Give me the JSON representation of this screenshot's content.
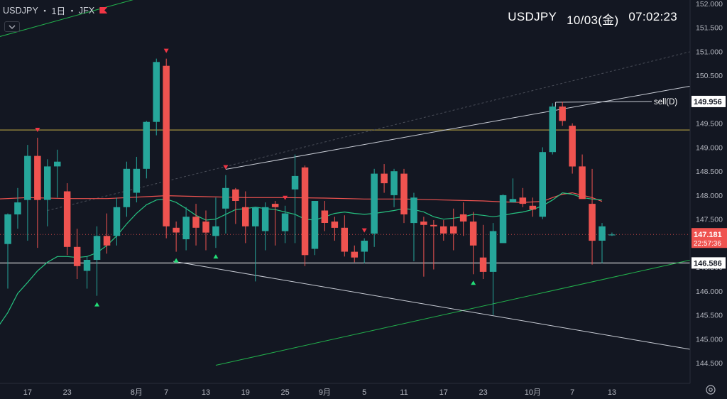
{
  "symbol": {
    "name": "USDJPY",
    "sep1": "・",
    "timeframe": "1日",
    "sep2": "・",
    "exchange": "JFX"
  },
  "header": {
    "symbol": "USDJPY",
    "date": "10/03(金)",
    "time": "07:02:23"
  },
  "colors": {
    "background": "#131722",
    "up": "#26a69a",
    "down": "#ef5350",
    "ma_short": "#26c281",
    "ma_long": "#ef5350",
    "trendline": "#c9cdd6",
    "channel": "#22b14c",
    "resistance": "#8a7d3a",
    "support": "#ffffff"
  },
  "chart_data": {
    "type": "candlestick",
    "ylim": [
      144.25,
      152.0
    ],
    "y_ticks": [
      "152.000",
      "151.500",
      "151.000",
      "150.500",
      "150.000",
      "149.500",
      "149.000",
      "148.500",
      "148.000",
      "147.500",
      "147.000",
      "146.500",
      "146.000",
      "145.500",
      "145.000",
      "144.500"
    ],
    "x_labels": [
      {
        "label": "17",
        "i": 2
      },
      {
        "label": "23",
        "i": 6
      },
      {
        "label": "8月",
        "i": 13
      },
      {
        "label": "7",
        "i": 16
      },
      {
        "label": "13",
        "i": 20
      },
      {
        "label": "19",
        "i": 24
      },
      {
        "label": "25",
        "i": 28
      },
      {
        "label": "9月",
        "i": 32
      },
      {
        "label": "5",
        "i": 36
      },
      {
        "label": "11",
        "i": 40
      },
      {
        "label": "17",
        "i": 44
      },
      {
        "label": "23",
        "i": 48
      },
      {
        "label": "10月",
        "i": 53
      },
      {
        "label": "7",
        "i": 57
      },
      {
        "label": "13",
        "i": 61
      }
    ],
    "candles": [
      [
        146.98,
        147.62,
        146.05,
        147.6
      ],
      [
        147.6,
        148.15,
        147.3,
        147.85
      ],
      [
        147.9,
        149.05,
        147.05,
        148.82
      ],
      [
        148.82,
        149.2,
        146.9,
        147.9
      ],
      [
        147.9,
        148.75,
        147.35,
        148.6
      ],
      [
        148.6,
        148.95,
        147.95,
        148.7
      ],
      [
        148.08,
        148.25,
        146.75,
        146.92
      ],
      [
        146.92,
        147.3,
        146.25,
        146.52
      ],
      [
        146.42,
        146.72,
        146.05,
        146.65
      ],
      [
        146.65,
        147.35,
        145.9,
        147.15
      ],
      [
        147.15,
        147.62,
        146.78,
        146.95
      ],
      [
        147.15,
        147.95,
        146.95,
        147.75
      ],
      [
        147.75,
        148.7,
        147.55,
        148.55
      ],
      [
        148.05,
        148.8,
        147.85,
        148.55
      ],
      [
        148.55,
        149.55,
        148.35,
        149.53
      ],
      [
        149.53,
        150.85,
        149.25,
        150.78
      ],
      [
        150.7,
        150.85,
        147.1,
        147.35
      ],
      [
        147.32,
        147.45,
        146.82,
        147.22
      ],
      [
        147.08,
        147.75,
        146.85,
        147.55
      ],
      [
        147.55,
        147.82,
        146.95,
        147.32
      ],
      [
        147.45,
        147.68,
        146.85,
        147.22
      ],
      [
        147.15,
        147.95,
        146.9,
        147.35
      ],
      [
        147.72,
        148.42,
        147.2,
        148.15
      ],
      [
        148.12,
        148.15,
        147.4,
        147.88
      ],
      [
        147.75,
        148.08,
        147.0,
        147.35
      ],
      [
        147.35,
        147.68,
        146.2,
        147.75
      ],
      [
        147.25,
        147.85,
        146.85,
        147.75
      ],
      [
        147.82,
        147.88,
        146.95,
        147.75
      ],
      [
        147.25,
        147.78,
        147.0,
        147.62
      ],
      [
        148.12,
        148.85,
        147.0,
        148.4
      ],
      [
        148.58,
        148.62,
        146.52,
        146.75
      ],
      [
        146.88,
        147.85,
        146.75,
        147.88
      ],
      [
        147.68,
        147.88,
        147.25,
        147.42
      ],
      [
        147.45,
        147.55,
        147.05,
        147.32
      ],
      [
        147.32,
        147.58,
        146.72,
        146.82
      ],
      [
        146.82,
        146.95,
        146.6,
        146.7
      ],
      [
        146.82,
        147.1,
        146.58,
        147.05
      ],
      [
        147.2,
        148.55,
        146.92,
        148.45
      ],
      [
        148.45,
        148.65,
        148.05,
        148.25
      ],
      [
        148.0,
        148.55,
        147.75,
        148.5
      ],
      [
        148.45,
        148.55,
        147.42,
        147.6
      ],
      [
        147.42,
        148.05,
        146.62,
        147.95
      ],
      [
        147.45,
        147.55,
        146.3,
        147.38
      ],
      [
        147.38,
        147.48,
        146.45,
        147.35
      ],
      [
        147.35,
        147.48,
        147.05,
        147.2
      ],
      [
        147.35,
        147.72,
        146.85,
        147.2
      ],
      [
        147.6,
        147.85,
        147.15,
        147.45
      ],
      [
        147.45,
        147.65,
        146.35,
        146.95
      ],
      [
        146.7,
        147.38,
        146.25,
        146.4
      ],
      [
        146.4,
        147.42,
        145.5,
        147.25
      ],
      [
        147.0,
        148.02,
        147.0,
        148.0
      ],
      [
        147.85,
        148.35,
        147.85,
        147.92
      ],
      [
        147.95,
        148.15,
        147.75,
        147.82
      ],
      [
        147.78,
        147.95,
        147.55,
        147.7
      ],
      [
        147.55,
        149.0,
        147.5,
        148.9
      ],
      [
        148.9,
        149.92,
        148.85,
        149.85
      ],
      [
        149.85,
        149.95,
        149.45,
        149.55
      ],
      [
        149.45,
        149.5,
        148.45,
        148.6
      ],
      [
        148.6,
        148.85,
        147.95,
        147.92
      ],
      [
        147.82,
        148.55,
        146.55,
        147.05
      ],
      [
        147.05,
        147.42,
        146.58,
        147.35
      ],
      [
        147.18,
        147.22,
        147.15,
        147.18
      ]
    ],
    "ma_short": [
      [
        -1,
        145.25
      ],
      [
        0,
        145.55
      ],
      [
        1,
        145.95
      ],
      [
        2,
        146.18
      ],
      [
        3,
        146.42
      ],
      [
        4,
        146.6
      ],
      [
        5,
        146.72
      ],
      [
        6,
        146.72
      ],
      [
        7,
        146.7
      ],
      [
        8,
        146.72
      ],
      [
        9,
        146.8
      ],
      [
        10,
        146.95
      ],
      [
        11,
        147.15
      ],
      [
        12,
        147.4
      ],
      [
        13,
        147.62
      ],
      [
        14,
        147.8
      ],
      [
        15,
        147.9
      ],
      [
        16,
        147.92
      ],
      [
        17,
        147.85
      ],
      [
        18,
        147.72
      ],
      [
        19,
        147.58
      ],
      [
        20,
        147.48
      ],
      [
        21,
        147.5
      ],
      [
        22,
        147.6
      ],
      [
        23,
        147.7
      ],
      [
        24,
        147.72
      ],
      [
        25,
        147.75
      ],
      [
        26,
        147.72
      ],
      [
        27,
        147.7
      ],
      [
        28,
        147.65
      ],
      [
        29,
        147.6
      ],
      [
        30,
        147.5
      ],
      [
        31,
        147.48
      ],
      [
        32,
        147.55
      ],
      [
        33,
        147.62
      ],
      [
        34,
        147.65
      ],
      [
        35,
        147.62
      ],
      [
        36,
        147.6
      ],
      [
        37,
        147.62
      ],
      [
        38,
        147.65
      ],
      [
        39,
        147.68
      ],
      [
        40,
        147.72
      ],
      [
        41,
        147.7
      ],
      [
        42,
        147.65
      ],
      [
        43,
        147.55
      ],
      [
        44,
        147.5
      ],
      [
        45,
        147.52
      ],
      [
        46,
        147.55
      ],
      [
        47,
        147.6
      ],
      [
        48,
        147.58
      ],
      [
        49,
        147.55
      ],
      [
        50,
        147.58
      ],
      [
        51,
        147.62
      ],
      [
        52,
        147.65
      ],
      [
        53,
        147.7
      ],
      [
        54,
        147.78
      ],
      [
        55,
        147.9
      ],
      [
        56,
        148.05
      ],
      [
        57,
        148.02
      ],
      [
        58,
        147.95
      ],
      [
        59,
        147.92
      ],
      [
        60,
        147.9
      ]
    ],
    "ma_long": [
      [
        -1,
        147.92
      ],
      [
        2,
        147.95
      ],
      [
        6,
        147.93
      ],
      [
        10,
        147.93
      ],
      [
        14,
        147.97
      ],
      [
        16,
        147.99
      ],
      [
        20,
        147.97
      ],
      [
        24,
        147.95
      ],
      [
        28,
        147.95
      ],
      [
        32,
        147.94
      ],
      [
        36,
        147.92
      ],
      [
        40,
        147.92
      ],
      [
        44,
        147.9
      ],
      [
        48,
        147.88
      ],
      [
        50,
        147.86
      ],
      [
        52,
        147.85
      ],
      [
        54,
        147.87
      ],
      [
        55,
        147.95
      ],
      [
        56,
        148.02
      ],
      [
        57,
        148.05
      ],
      [
        58,
        148.0
      ],
      [
        59,
        147.95
      ],
      [
        60,
        147.87
      ]
    ],
    "annotations": {
      "resistance_price": 149.36,
      "support_price": 146.586,
      "signal_price": 149.956,
      "signal_label": "sell(D)",
      "current_price_label": "147.181",
      "countdown": "22:57:36",
      "support_label": "146.586",
      "sell_markers": [
        3,
        16,
        16.05,
        22,
        28,
        36
      ],
      "buy_markers": [
        9,
        17,
        21,
        47
      ]
    }
  }
}
